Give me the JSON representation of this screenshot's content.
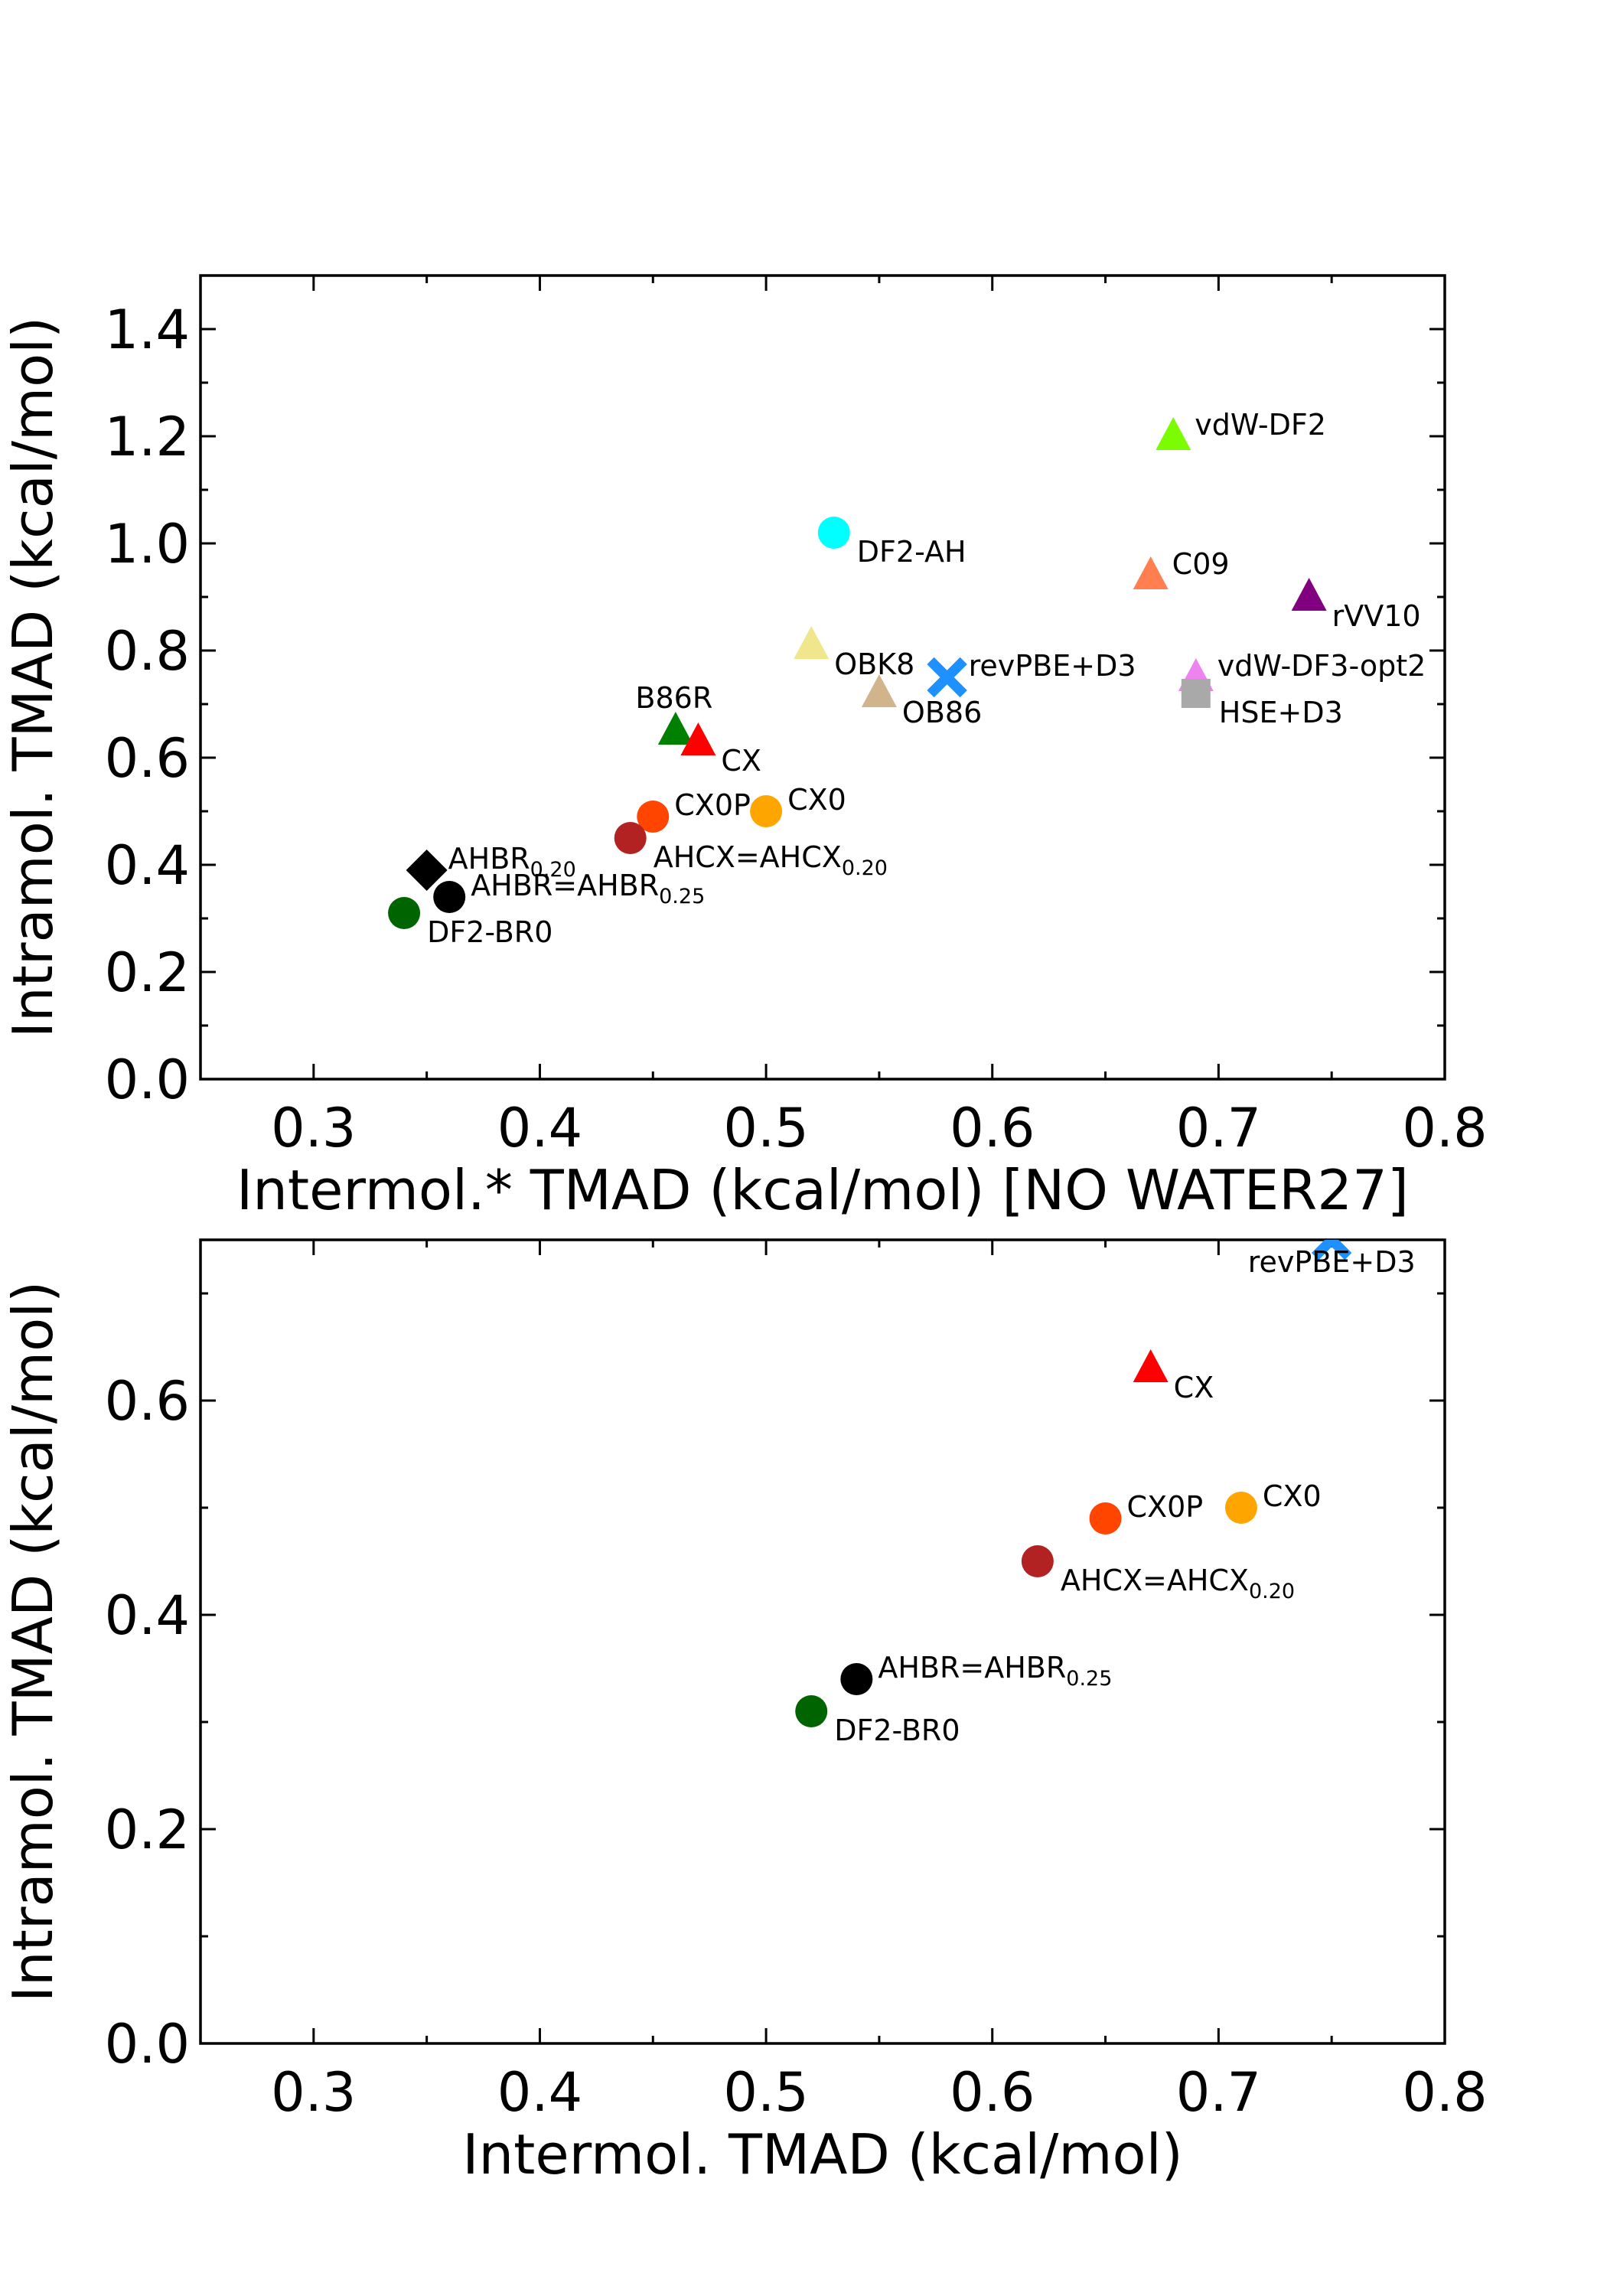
{
  "chart_data": [
    {
      "type": "scatter",
      "xlabel": "Intermol.* TMAD (kcal/mol) [NO WATER27]",
      "ylabel": "Intramol. TMAD (kcal/mol)",
      "xlim": [
        0.25,
        0.8
      ],
      "ylim": [
        0.0,
        1.5
      ],
      "xticks": [
        0.3,
        0.4,
        0.5,
        0.6,
        0.7,
        0.8
      ],
      "yticks": [
        0.0,
        0.2,
        0.4,
        0.6,
        0.8,
        1.0,
        1.2,
        1.4
      ],
      "grid": false,
      "points": [
        {
          "label": "vdW-DF2",
          "x": 0.68,
          "y": 1.2,
          "marker": "triangle",
          "color": "#7cfc00",
          "label_pos": "right"
        },
        {
          "label": "DF2-AH",
          "x": 0.53,
          "y": 1.02,
          "marker": "circle",
          "color": "#00ffff",
          "label_pos": "below-right"
        },
        {
          "label": "C09",
          "x": 0.67,
          "y": 0.94,
          "marker": "triangle",
          "color": "#ff7f50",
          "label_pos": "right"
        },
        {
          "label": "rVV10",
          "x": 0.74,
          "y": 0.9,
          "marker": "triangle",
          "color": "#800080",
          "label_pos": "below-right"
        },
        {
          "label": "OBK8",
          "x": 0.52,
          "y": 0.81,
          "marker": "triangle",
          "color": "#f0e68c",
          "label_pos": "below-right"
        },
        {
          "label": "revPBE+D3",
          "x": 0.58,
          "y": 0.75,
          "marker": "x",
          "color": "#1e90ff",
          "label_pos": "right"
        },
        {
          "label": "vdW-DF3-opt2",
          "x": 0.69,
          "y": 0.75,
          "marker": "triangle",
          "color": "#ee82ee",
          "label_pos": "right"
        },
        {
          "label": "OB86",
          "x": 0.55,
          "y": 0.72,
          "marker": "triangle",
          "color": "#d2b48c",
          "label_pos": "below-right"
        },
        {
          "label": "HSE+D3",
          "x": 0.69,
          "y": 0.72,
          "marker": "square",
          "color": "#a9a9a9",
          "label_pos": "below-right"
        },
        {
          "label": "B86R",
          "x": 0.46,
          "y": 0.65,
          "marker": "triangle",
          "color": "#008000",
          "label_pos": "above"
        },
        {
          "label": "CX",
          "x": 0.47,
          "y": 0.63,
          "marker": "triangle",
          "color": "#ff0000",
          "label_pos": "below-right"
        },
        {
          "label": "CX0",
          "x": 0.5,
          "y": 0.5,
          "marker": "circle",
          "color": "#ffa500",
          "label_pos": "right"
        },
        {
          "label": "CX0P",
          "x": 0.45,
          "y": 0.49,
          "marker": "circle",
          "color": "#ff4500",
          "label_pos": "right"
        },
        {
          "label": "AHCX=AHCX",
          "sub": "0.20",
          "x": 0.44,
          "y": 0.45,
          "marker": "circle",
          "color": "#b22222",
          "label_pos": "below-right"
        },
        {
          "label": "AHBR",
          "sub": "0.20",
          "x": 0.35,
          "y": 0.39,
          "marker": "diamond",
          "color": "#000000",
          "label_pos": "right"
        },
        {
          "label": "AHBR=AHBR",
          "sub": "0.25",
          "x": 0.36,
          "y": 0.34,
          "marker": "circle",
          "color": "#000000",
          "label_pos": "right"
        },
        {
          "label": "DF2-BR0",
          "x": 0.34,
          "y": 0.31,
          "marker": "circle",
          "color": "#006400",
          "label_pos": "below-right"
        }
      ]
    },
    {
      "type": "scatter",
      "xlabel": "Intermol. TMAD (kcal/mol)",
      "ylabel": "Intramol. TMAD (kcal/mol)",
      "xlim": [
        0.25,
        0.8
      ],
      "ylim": [
        0.0,
        0.75
      ],
      "xticks": [
        0.3,
        0.4,
        0.5,
        0.6,
        0.7,
        0.8
      ],
      "yticks": [
        0.0,
        0.2,
        0.4,
        0.6
      ],
      "grid": false,
      "points": [
        {
          "label": "revPBE+D3",
          "x": 0.75,
          "y": 0.75,
          "marker": "x",
          "color": "#1e90ff",
          "label_pos": "below"
        },
        {
          "label": "CX",
          "x": 0.67,
          "y": 0.63,
          "marker": "triangle",
          "color": "#ff0000",
          "label_pos": "below-right"
        },
        {
          "label": "CX0",
          "x": 0.71,
          "y": 0.5,
          "marker": "circle",
          "color": "#ffa500",
          "label_pos": "right"
        },
        {
          "label": "CX0P",
          "x": 0.65,
          "y": 0.49,
          "marker": "circle",
          "color": "#ff4500",
          "label_pos": "right"
        },
        {
          "label": "AHCX=AHCX",
          "sub": "0.20",
          "x": 0.62,
          "y": 0.45,
          "marker": "circle",
          "color": "#b22222",
          "label_pos": "below-right"
        },
        {
          "label": "AHBR=AHBR",
          "sub": "0.25",
          "x": 0.54,
          "y": 0.34,
          "marker": "circle",
          "color": "#000000",
          "label_pos": "right"
        },
        {
          "label": "DF2-BR0",
          "x": 0.52,
          "y": 0.31,
          "marker": "circle",
          "color": "#006400",
          "label_pos": "below-right"
        }
      ]
    }
  ]
}
